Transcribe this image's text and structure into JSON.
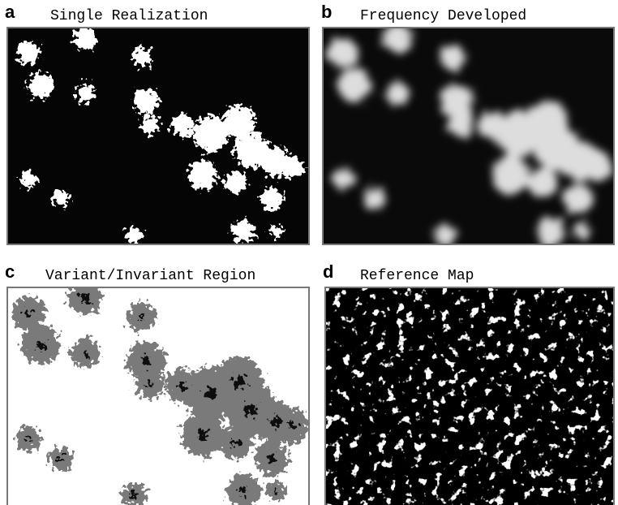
{
  "panels": [
    {
      "label": "a",
      "title": "Single Realization"
    },
    {
      "label": "b",
      "title": "Frequency Developed"
    },
    {
      "label": "c",
      "title": "Variant/Invariant Region"
    },
    {
      "label": "d",
      "title": "Reference Map"
    }
  ]
}
